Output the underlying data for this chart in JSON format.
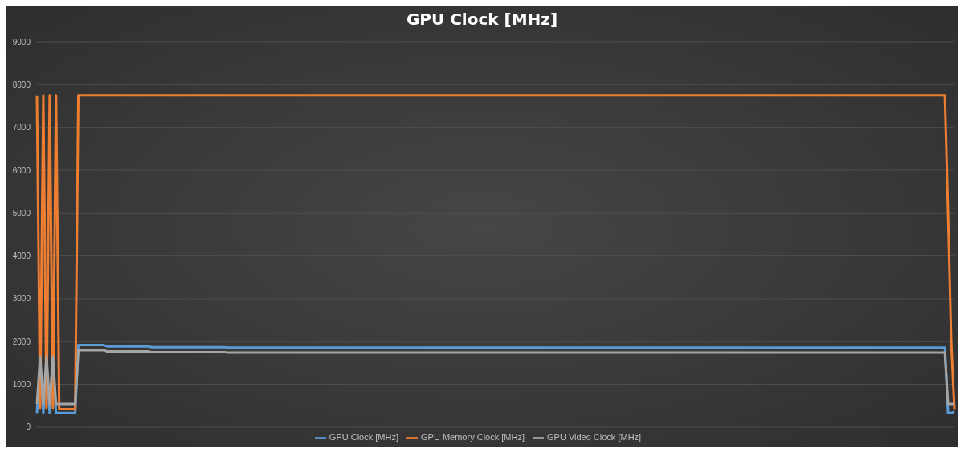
{
  "chart_data": {
    "type": "line",
    "title": "GPU Clock [MHz]",
    "categories": [
      null,
      null,
      null,
      null,
      null,
      null,
      null,
      null,
      null,
      null,
      null,
      null,
      null,
      null,
      null,
      null,
      null,
      null,
      null,
      null,
      null,
      null,
      null,
      null,
      null,
      null,
      null,
      null,
      null,
      null,
      null,
      null,
      null,
      null,
      null,
      null,
      null,
      null,
      null,
      null,
      null,
      null,
      null,
      null,
      null,
      null,
      null,
      null,
      null,
      null,
      null,
      null,
      null,
      null,
      null,
      null,
      null,
      null,
      null,
      null,
      null,
      null,
      null,
      null,
      null,
      null,
      null,
      null,
      null,
      null,
      null,
      null,
      null,
      null,
      null,
      null,
      null,
      null,
      null,
      null,
      null,
      null,
      null,
      null,
      null,
      null,
      null,
      null,
      null,
      null,
      null,
      null,
      null,
      null,
      null,
      null,
      null,
      null,
      null,
      null,
      null,
      null,
      null,
      null,
      null,
      null,
      null,
      null,
      null,
      null,
      null,
      null,
      null,
      null,
      null,
      null,
      null,
      null,
      null,
      null,
      null,
      null,
      null,
      null,
      null,
      null,
      null,
      null,
      null,
      null,
      null,
      null,
      null,
      null,
      null,
      null,
      null,
      null,
      null,
      null,
      null,
      null,
      null,
      null,
      null,
      null,
      null,
      null,
      null,
      null,
      null,
      null,
      null,
      null,
      null,
      null,
      null,
      null,
      null,
      null,
      null,
      null,
      null,
      null,
      null,
      null,
      null,
      null,
      null,
      null,
      null,
      null,
      null,
      null,
      null,
      null,
      null,
      null,
      null,
      null,
      null,
      null,
      null,
      null,
      null,
      null,
      null,
      null,
      null,
      null,
      null,
      null,
      null,
      null,
      null,
      null,
      null,
      null,
      null,
      null,
      null,
      null,
      null,
      null,
      null,
      null,
      null,
      null,
      null,
      null,
      null,
      null,
      null,
      null,
      null,
      null,
      null,
      null,
      null,
      null,
      null,
      null,
      null,
      null,
      null,
      null,
      null,
      null,
      null,
      null,
      null,
      null,
      null,
      null,
      null,
      null,
      null,
      null,
      null,
      null,
      null,
      null,
      null,
      null,
      null,
      null,
      null,
      null,
      null,
      null,
      null,
      null,
      null,
      null,
      null,
      null,
      null,
      null,
      null,
      null,
      null,
      null,
      null,
      null,
      null,
      null,
      null,
      null,
      null,
      null,
      null,
      null,
      null,
      null,
      null,
      null,
      null,
      null,
      null,
      null,
      null,
      null,
      null,
      null,
      null,
      null,
      null,
      null,
      null
    ],
    "series": [
      {
        "name": "GPU Clock [MHz]",
        "color": "#5b9bd5",
        "values": [
          330,
          1500,
          330,
          1500,
          330,
          1500,
          330,
          330,
          330,
          330,
          330,
          330,
          330,
          1920,
          1920,
          1920,
          1920,
          1920,
          1920,
          1920,
          1920,
          1920,
          1890,
          1890,
          1890,
          1890,
          1890,
          1890,
          1890,
          1890,
          1890,
          1890,
          1890,
          1890,
          1890,
          1890,
          1870,
          1870,
          1870,
          1870,
          1870,
          1870,
          1870,
          1870,
          1870,
          1870,
          1870,
          1870,
          1870,
          1870,
          1870,
          1870,
          1870,
          1870,
          1870,
          1870,
          1870,
          1870,
          1870,
          1870,
          1860,
          1860,
          1860,
          1860,
          1860,
          1860,
          1860,
          1860,
          1860,
          1860,
          1860,
          1860,
          1860,
          1860,
          1860,
          1860,
          1860,
          1860,
          1860,
          1860,
          1860,
          1860,
          1860,
          1860,
          1860,
          1860,
          1860,
          1860,
          1860,
          1860,
          1860,
          1860,
          1860,
          1860,
          1860,
          1860,
          1860,
          1860,
          1860,
          1860,
          1860,
          1860,
          1860,
          1860,
          1860,
          1860,
          1860,
          1860,
          1860,
          1860,
          1860,
          1860,
          1860,
          1860,
          1860,
          1860,
          1860,
          1860,
          1860,
          1860,
          1860,
          1860,
          1860,
          1860,
          1860,
          1860,
          1860,
          1860,
          1860,
          1860,
          1860,
          1860,
          1860,
          1860,
          1860,
          1860,
          1860,
          1860,
          1860,
          1860,
          1860,
          1860,
          1860,
          1860,
          1860,
          1860,
          1860,
          1860,
          1860,
          1860,
          1860,
          1860,
          1860,
          1860,
          1860,
          1860,
          1860,
          1860,
          1860,
          1860,
          1860,
          1860,
          1860,
          1860,
          1860,
          1860,
          1860,
          1860,
          1860,
          1860,
          1860,
          1860,
          1860,
          1860,
          1860,
          1860,
          1860,
          1860,
          1860,
          1860,
          1860,
          1860,
          1860,
          1860,
          1860,
          1860,
          1860,
          1860,
          1860,
          1860,
          1860,
          1860,
          1860,
          1860,
          1860,
          1860,
          1860,
          1860,
          1860,
          1860,
          1860,
          1860,
          1860,
          1860,
          1860,
          1860,
          1860,
          1860,
          1860,
          1860,
          1860,
          1860,
          1860,
          1860,
          1860,
          1860,
          1860,
          1860,
          1860,
          1860,
          1860,
          1860,
          1860,
          1860,
          1860,
          1860,
          1860,
          1860,
          1860,
          1860,
          1860,
          1860,
          1860,
          1860,
          1860,
          1860,
          1860,
          1860,
          1860,
          1860,
          1860,
          1860,
          1860,
          1860,
          1860,
          1860,
          1860,
          1860,
          1860,
          1860,
          1860,
          1860,
          1860,
          1860,
          1860,
          1860,
          1860,
          1860,
          1860,
          1860,
          1860,
          1860,
          1860,
          1860,
          1860,
          1860,
          1860,
          1860,
          1860,
          1860,
          1860,
          1860,
          1860,
          1860,
          1860,
          1860,
          1860,
          1860,
          1860,
          1860,
          1860,
          1860,
          1860,
          1860,
          1860,
          1860,
          330,
          330,
          360
        ]
      },
      {
        "name": "GPU Memory Clock [MHz]",
        "color": "#ed7d31",
        "values": [
          7750,
          450,
          7750,
          450,
          7750,
          450,
          7750,
          420,
          420,
          420,
          420,
          420,
          420,
          7750,
          7750,
          7750,
          7750,
          7750,
          7750,
          7750,
          7750,
          7750,
          7750,
          7750,
          7750,
          7750,
          7750,
          7750,
          7750,
          7750,
          7750,
          7750,
          7750,
          7750,
          7750,
          7750,
          7750,
          7750,
          7750,
          7750,
          7750,
          7750,
          7750,
          7750,
          7750,
          7750,
          7750,
          7750,
          7750,
          7750,
          7750,
          7750,
          7750,
          7750,
          7750,
          7750,
          7750,
          7750,
          7750,
          7750,
          7750,
          7750,
          7750,
          7750,
          7750,
          7750,
          7750,
          7750,
          7750,
          7750,
          7750,
          7750,
          7750,
          7750,
          7750,
          7750,
          7750,
          7750,
          7750,
          7750,
          7750,
          7750,
          7750,
          7750,
          7750,
          7750,
          7750,
          7750,
          7750,
          7750,
          7750,
          7750,
          7750,
          7750,
          7750,
          7750,
          7750,
          7750,
          7750,
          7750,
          7750,
          7750,
          7750,
          7750,
          7750,
          7750,
          7750,
          7750,
          7750,
          7750,
          7750,
          7750,
          7750,
          7750,
          7750,
          7750,
          7750,
          7750,
          7750,
          7750,
          7750,
          7750,
          7750,
          7750,
          7750,
          7750,
          7750,
          7750,
          7750,
          7750,
          7750,
          7750,
          7750,
          7750,
          7750,
          7750,
          7750,
          7750,
          7750,
          7750,
          7750,
          7750,
          7750,
          7750,
          7750,
          7750,
          7750,
          7750,
          7750,
          7750,
          7750,
          7750,
          7750,
          7750,
          7750,
          7750,
          7750,
          7750,
          7750,
          7750,
          7750,
          7750,
          7750,
          7750,
          7750,
          7750,
          7750,
          7750,
          7750,
          7750,
          7750,
          7750,
          7750,
          7750,
          7750,
          7750,
          7750,
          7750,
          7750,
          7750,
          7750,
          7750,
          7750,
          7750,
          7750,
          7750,
          7750,
          7750,
          7750,
          7750,
          7750,
          7750,
          7750,
          7750,
          7750,
          7750,
          7750,
          7750,
          7750,
          7750,
          7750,
          7750,
          7750,
          7750,
          7750,
          7750,
          7750,
          7750,
          7750,
          7750,
          7750,
          7750,
          7750,
          7750,
          7750,
          7750,
          7750,
          7750,
          7750,
          7750,
          7750,
          7750,
          7750,
          7750,
          7750,
          7750,
          7750,
          7750,
          7750,
          7750,
          7750,
          7750,
          7750,
          7750,
          7750,
          7750,
          7750,
          7750,
          7750,
          7750,
          7750,
          7750,
          7750,
          7750,
          7750,
          7750,
          7750,
          7750,
          7750,
          7750,
          7750,
          7750,
          7750,
          7750,
          7750,
          7750,
          7750,
          7750,
          7750,
          7750,
          7750,
          7750,
          7750,
          7750,
          7750,
          7750,
          7750,
          7750,
          7750,
          7750,
          7750,
          7750,
          7750,
          7750,
          7750,
          7750,
          7750,
          7750,
          7750,
          7750,
          7750,
          7750,
          7750,
          7750,
          7750,
          7750,
          5000,
          2000,
          420
        ]
      },
      {
        "name": "GPU Video Clock [MHz]",
        "color": "#a5a5a5",
        "values": [
          540,
          1650,
          540,
          1650,
          540,
          1650,
          540,
          540,
          540,
          540,
          540,
          540,
          540,
          1800,
          1800,
          1800,
          1800,
          1800,
          1800,
          1800,
          1800,
          1800,
          1770,
          1770,
          1770,
          1770,
          1770,
          1770,
          1770,
          1770,
          1770,
          1770,
          1770,
          1770,
          1770,
          1770,
          1750,
          1750,
          1750,
          1750,
          1750,
          1750,
          1750,
          1750,
          1750,
          1750,
          1750,
          1750,
          1750,
          1750,
          1750,
          1750,
          1750,
          1750,
          1750,
          1750,
          1750,
          1750,
          1750,
          1750,
          1740,
          1740,
          1740,
          1740,
          1740,
          1740,
          1740,
          1740,
          1740,
          1740,
          1740,
          1740,
          1740,
          1740,
          1740,
          1740,
          1740,
          1740,
          1740,
          1740,
          1740,
          1740,
          1740,
          1740,
          1740,
          1740,
          1740,
          1740,
          1740,
          1740,
          1740,
          1740,
          1740,
          1740,
          1740,
          1740,
          1740,
          1740,
          1740,
          1740,
          1740,
          1740,
          1740,
          1740,
          1740,
          1740,
          1740,
          1740,
          1740,
          1740,
          1740,
          1740,
          1740,
          1740,
          1740,
          1740,
          1740,
          1740,
          1740,
          1740,
          1740,
          1740,
          1740,
          1740,
          1740,
          1740,
          1740,
          1740,
          1740,
          1740,
          1740,
          1740,
          1740,
          1740,
          1740,
          1740,
          1740,
          1740,
          1740,
          1740,
          1740,
          1740,
          1740,
          1740,
          1740,
          1740,
          1740,
          1740,
          1740,
          1740,
          1740,
          1740,
          1740,
          1740,
          1740,
          1740,
          1740,
          1740,
          1740,
          1740,
          1740,
          1740,
          1740,
          1740,
          1740,
          1740,
          1740,
          1740,
          1740,
          1740,
          1740,
          1740,
          1740,
          1740,
          1740,
          1740,
          1740,
          1740,
          1740,
          1740,
          1740,
          1740,
          1740,
          1740,
          1740,
          1740,
          1740,
          1740,
          1740,
          1740,
          1740,
          1740,
          1740,
          1740,
          1740,
          1740,
          1740,
          1740,
          1740,
          1740,
          1740,
          1740,
          1740,
          1740,
          1740,
          1740,
          1740,
          1740,
          1740,
          1740,
          1740,
          1740,
          1740,
          1740,
          1740,
          1740,
          1740,
          1740,
          1740,
          1740,
          1740,
          1740,
          1740,
          1740,
          1740,
          1740,
          1740,
          1740,
          1740,
          1740,
          1740,
          1740,
          1740,
          1740,
          1740,
          1740,
          1740,
          1740,
          1740,
          1740,
          1740,
          1740,
          1740,
          1740,
          1740,
          1740,
          1740,
          1740,
          1740,
          1740,
          1740,
          1740,
          1740,
          1740,
          1740,
          1740,
          1740,
          1740,
          1740,
          1740,
          1740,
          1740,
          1740,
          1740,
          1740,
          1740,
          1740,
          1740,
          1740,
          1740,
          1740,
          1740,
          1740,
          1740,
          1740,
          1740,
          1740,
          1740,
          1740,
          1740,
          1740,
          1740,
          1740,
          1740,
          1740,
          1740,
          540,
          540,
          540
        ]
      }
    ],
    "ylim": [
      0,
      9000
    ],
    "yticks": [
      0,
      1000,
      2000,
      3000,
      4000,
      5000,
      6000,
      7000,
      8000,
      9000
    ],
    "grid": "y",
    "legend": "bottom",
    "marker": "none",
    "line_style": "solid",
    "tick_labels": "y"
  }
}
